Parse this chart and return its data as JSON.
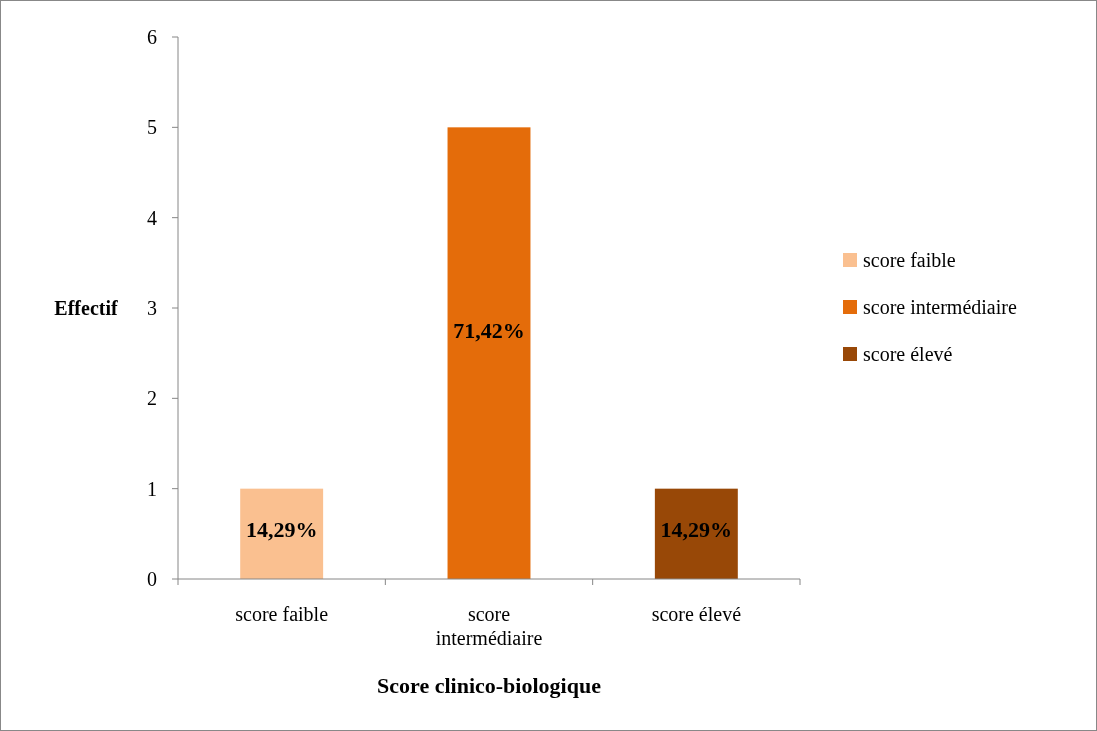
{
  "chart_data": {
    "type": "bar",
    "xlabel": "Score clinico-biologique",
    "ylabel": "Effectif",
    "categories": [
      "score faible",
      "score intermédiaire",
      "score élevé"
    ],
    "stacked": true,
    "series": [
      {
        "name": "score faible",
        "color": "#fac090",
        "values": [
          1,
          null,
          null
        ]
      },
      {
        "name": "score intermédiaire",
        "color": "#e46c0a",
        "values": [
          null,
          5,
          null
        ]
      },
      {
        "name": "score élevé",
        "color": "#984807",
        "values": [
          null,
          null,
          1
        ]
      }
    ],
    "annotations": [
      "14,29%",
      "71,42%",
      "14,29%"
    ],
    "grid": false,
    "ylim": [
      0,
      6
    ],
    "yticks": [
      0,
      1,
      2,
      3,
      4,
      5,
      6
    ],
    "legend": "right"
  }
}
